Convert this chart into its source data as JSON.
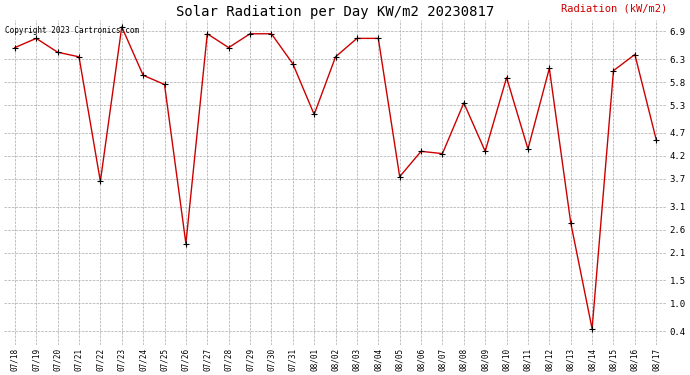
{
  "title": "Solar Radiation per Day KW/m2 20230817",
  "ylabel": "Radiation (kW/m2)",
  "copyright": "Copyright 2023 Cartronics.com",
  "dates": [
    "07/18",
    "07/19",
    "07/20",
    "07/21",
    "07/22",
    "07/23",
    "07/24",
    "07/25",
    "07/26",
    "07/27",
    "07/28",
    "07/29",
    "07/30",
    "07/31",
    "08/01",
    "08/02",
    "08/03",
    "08/04",
    "08/05",
    "08/06",
    "08/07",
    "08/08",
    "08/09",
    "08/10",
    "08/11",
    "08/12",
    "08/13",
    "08/14",
    "08/15",
    "08/16",
    "08/17"
  ],
  "values": [
    6.55,
    6.75,
    6.45,
    6.35,
    3.65,
    7.0,
    5.95,
    5.75,
    2.3,
    6.85,
    6.55,
    6.85,
    6.85,
    6.2,
    5.1,
    6.35,
    6.75,
    6.75,
    3.75,
    4.3,
    4.25,
    5.35,
    4.3,
    5.9,
    4.35,
    6.1,
    2.75,
    0.45,
    6.05,
    6.4,
    4.55
  ],
  "line_color": "#cc0000",
  "marker_color": "#000000",
  "bg_color": "#ffffff",
  "grid_color": "#aaaaaa",
  "title_color": "#000000",
  "ylabel_color": "#cc0000",
  "copyright_color": "#000000",
  "ylim_min": 0.1,
  "ylim_max": 7.15,
  "yticks": [
    0.4,
    1.0,
    1.5,
    2.1,
    2.6,
    3.1,
    3.7,
    4.2,
    4.7,
    5.3,
    5.8,
    6.3,
    6.9
  ],
  "title_fontsize": 10,
  "xlabel_fontsize": 5.5,
  "ylabel_fontsize": 7.5,
  "ytick_fontsize": 6.5,
  "copyright_fontsize": 5.5
}
